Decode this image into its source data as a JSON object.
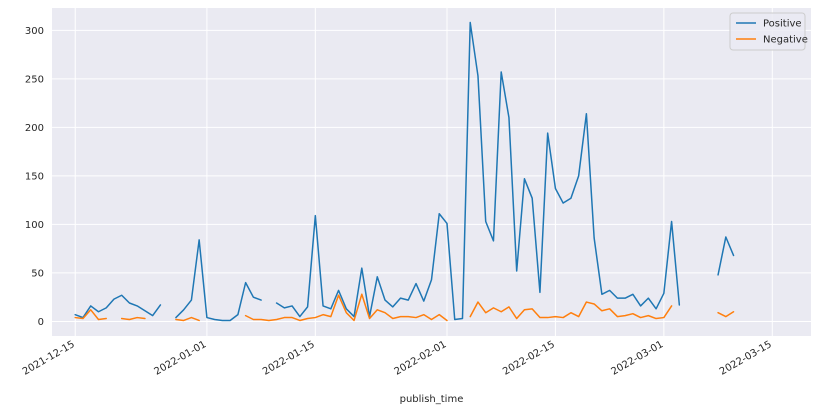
{
  "chart_data": {
    "type": "line",
    "xlabel": "publish_time",
    "ylabel": "",
    "x_axis": {
      "kind": "date",
      "range": [
        "2021-12-12",
        "2022-03-20"
      ],
      "ticks": [
        "2021-12-15",
        "2022-01-01",
        "2022-01-15",
        "2022-02-01",
        "2022-02-15",
        "2022-03-01",
        "2022-03-15"
      ]
    },
    "y_axis": {
      "range": [
        -15,
        323
      ],
      "ticks": [
        0,
        50,
        100,
        150,
        200,
        250,
        300
      ]
    },
    "grid": true,
    "legend_position": "top-right",
    "series": [
      {
        "name": "Positive",
        "color": "#1f77b4",
        "points": [
          [
            "2021-12-15",
            7
          ],
          [
            "2021-12-16",
            4
          ],
          [
            "2021-12-17",
            16
          ],
          [
            "2021-12-18",
            10
          ],
          [
            "2021-12-19",
            14
          ],
          [
            "2021-12-20",
            23
          ],
          [
            "2021-12-21",
            27
          ],
          [
            "2021-12-22",
            19
          ],
          [
            "2021-12-23",
            16
          ],
          [
            "2021-12-24",
            11
          ],
          [
            "2021-12-25",
            6
          ],
          [
            "2021-12-26",
            17
          ],
          [
            "2021-12-27",
            null
          ],
          [
            "2021-12-28",
            4
          ],
          [
            "2021-12-29",
            12
          ],
          [
            "2021-12-30",
            22
          ],
          [
            "2021-12-31",
            84
          ],
          [
            "2022-01-01",
            4
          ],
          [
            "2022-01-02",
            2
          ],
          [
            "2022-01-03",
            1
          ],
          [
            "2022-01-04",
            1
          ],
          [
            "2022-01-05",
            7
          ],
          [
            "2022-01-06",
            40
          ],
          [
            "2022-01-07",
            25
          ],
          [
            "2022-01-08",
            22
          ],
          [
            "2022-01-09",
            null
          ],
          [
            "2022-01-10",
            19
          ],
          [
            "2022-01-11",
            14
          ],
          [
            "2022-01-12",
            16
          ],
          [
            "2022-01-13",
            5
          ],
          [
            "2022-01-14",
            15
          ],
          [
            "2022-01-15",
            109
          ],
          [
            "2022-01-16",
            16
          ],
          [
            "2022-01-17",
            13
          ],
          [
            "2022-01-18",
            32
          ],
          [
            "2022-01-19",
            13
          ],
          [
            "2022-01-20",
            5
          ],
          [
            "2022-01-21",
            55
          ],
          [
            "2022-01-22",
            5
          ],
          [
            "2022-01-23",
            46
          ],
          [
            "2022-01-24",
            22
          ],
          [
            "2022-01-25",
            15
          ],
          [
            "2022-01-26",
            24
          ],
          [
            "2022-01-27",
            22
          ],
          [
            "2022-01-28",
            39
          ],
          [
            "2022-01-29",
            21
          ],
          [
            "2022-01-30",
            43
          ],
          [
            "2022-01-31",
            111
          ],
          [
            "2022-02-01",
            101
          ],
          [
            "2022-02-02",
            2
          ],
          [
            "2022-02-03",
            3
          ],
          [
            "2022-02-04",
            308
          ],
          [
            "2022-02-05",
            253
          ],
          [
            "2022-02-06",
            103
          ],
          [
            "2022-02-07",
            83
          ],
          [
            "2022-02-08",
            257
          ],
          [
            "2022-02-09",
            210
          ],
          [
            "2022-02-10",
            52
          ],
          [
            "2022-02-11",
            147
          ],
          [
            "2022-02-12",
            127
          ],
          [
            "2022-02-13",
            30
          ],
          [
            "2022-02-14",
            194
          ],
          [
            "2022-02-15",
            137
          ],
          [
            "2022-02-16",
            122
          ],
          [
            "2022-02-17",
            127
          ],
          [
            "2022-02-18",
            150
          ],
          [
            "2022-02-19",
            214
          ],
          [
            "2022-02-20",
            86
          ],
          [
            "2022-02-21",
            28
          ],
          [
            "2022-02-22",
            32
          ],
          [
            "2022-02-23",
            24
          ],
          [
            "2022-02-24",
            24
          ],
          [
            "2022-02-25",
            28
          ],
          [
            "2022-02-26",
            16
          ],
          [
            "2022-02-27",
            24
          ],
          [
            "2022-02-28",
            13
          ],
          [
            "2022-03-01",
            29
          ],
          [
            "2022-03-02",
            103
          ],
          [
            "2022-03-03",
            17
          ],
          [
            "2022-03-04",
            null
          ],
          [
            "2022-03-08",
            48
          ],
          [
            "2022-03-09",
            87
          ],
          [
            "2022-03-10",
            68
          ]
        ]
      },
      {
        "name": "Negative",
        "color": "#ff7f0e",
        "points": [
          [
            "2021-12-15",
            4
          ],
          [
            "2021-12-16",
            3
          ],
          [
            "2021-12-17",
            12
          ],
          [
            "2021-12-18",
            2
          ],
          [
            "2021-12-19",
            3
          ],
          [
            "2021-12-20",
            null
          ],
          [
            "2021-12-21",
            3
          ],
          [
            "2021-12-22",
            2
          ],
          [
            "2021-12-23",
            4
          ],
          [
            "2021-12-24",
            3
          ],
          [
            "2021-12-25",
            null
          ],
          [
            "2021-12-28",
            2
          ],
          [
            "2021-12-29",
            1
          ],
          [
            "2021-12-30",
            4
          ],
          [
            "2021-12-31",
            1
          ],
          [
            "2022-01-01",
            null
          ],
          [
            "2022-01-06",
            6
          ],
          [
            "2022-01-07",
            2
          ],
          [
            "2022-01-08",
            2
          ],
          [
            "2022-01-09",
            1
          ],
          [
            "2022-01-10",
            2
          ],
          [
            "2022-01-11",
            4
          ],
          [
            "2022-01-12",
            4
          ],
          [
            "2022-01-13",
            1
          ],
          [
            "2022-01-14",
            3
          ],
          [
            "2022-01-15",
            4
          ],
          [
            "2022-01-16",
            7
          ],
          [
            "2022-01-17",
            5
          ],
          [
            "2022-01-18",
            27
          ],
          [
            "2022-01-19",
            9
          ],
          [
            "2022-01-20",
            1
          ],
          [
            "2022-01-21",
            28
          ],
          [
            "2022-01-22",
            3
          ],
          [
            "2022-01-23",
            12
          ],
          [
            "2022-01-24",
            9
          ],
          [
            "2022-01-25",
            3
          ],
          [
            "2022-01-26",
            5
          ],
          [
            "2022-01-27",
            5
          ],
          [
            "2022-01-28",
            4
          ],
          [
            "2022-01-29",
            7
          ],
          [
            "2022-01-30",
            2
          ],
          [
            "2022-01-31",
            7
          ],
          [
            "2022-02-01",
            1
          ],
          [
            "2022-02-02",
            null
          ],
          [
            "2022-02-04",
            5
          ],
          [
            "2022-02-05",
            20
          ],
          [
            "2022-02-06",
            9
          ],
          [
            "2022-02-07",
            14
          ],
          [
            "2022-02-08",
            10
          ],
          [
            "2022-02-09",
            15
          ],
          [
            "2022-02-10",
            3
          ],
          [
            "2022-02-11",
            12
          ],
          [
            "2022-02-12",
            13
          ],
          [
            "2022-02-13",
            4
          ],
          [
            "2022-02-14",
            4
          ],
          [
            "2022-02-15",
            5
          ],
          [
            "2022-02-16",
            4
          ],
          [
            "2022-02-17",
            9
          ],
          [
            "2022-02-18",
            5
          ],
          [
            "2022-02-19",
            20
          ],
          [
            "2022-02-20",
            18
          ],
          [
            "2022-02-21",
            11
          ],
          [
            "2022-02-22",
            13
          ],
          [
            "2022-02-23",
            5
          ],
          [
            "2022-02-24",
            6
          ],
          [
            "2022-02-25",
            8
          ],
          [
            "2022-02-26",
            4
          ],
          [
            "2022-02-27",
            6
          ],
          [
            "2022-02-28",
            3
          ],
          [
            "2022-03-01",
            4
          ],
          [
            "2022-03-02",
            16
          ],
          [
            "2022-03-03",
            null
          ],
          [
            "2022-03-08",
            9
          ],
          [
            "2022-03-09",
            5
          ],
          [
            "2022-03-10",
            10
          ]
        ]
      }
    ],
    "colors": {
      "plot_background": "#eaeaf2",
      "grid": "#ffffff",
      "legend_background": "#eaeaf2"
    }
  }
}
